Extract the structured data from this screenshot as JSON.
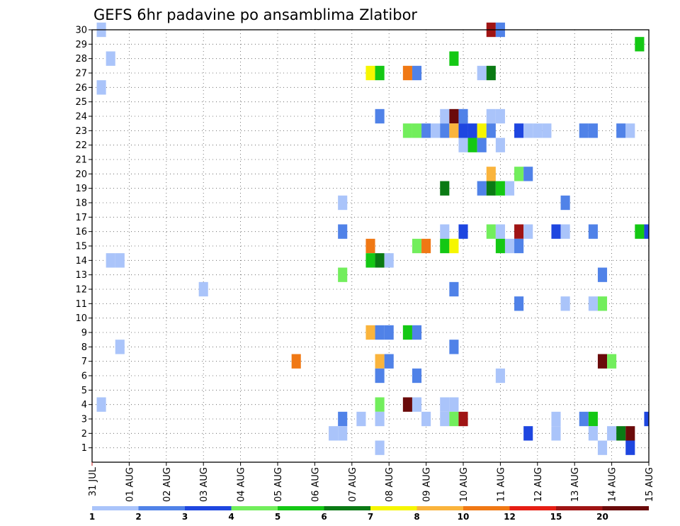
{
  "chart_data": {
    "type": "heatmap",
    "title": "GEFS 6hr padavine po ansamblima Zlatibor",
    "x_ticks": [
      "31 JUL",
      "01 AUG",
      "02 AUG",
      "03 AUG",
      "04 AUG",
      "05 AUG",
      "06 AUG",
      "07 AUG",
      "08 AUG",
      "09 AUG",
      "10 AUG",
      "11 AUG",
      "12 AUG",
      "13 AUG",
      "14 AUG",
      "15 AUG"
    ],
    "x_range": [
      "31 JUL 00Z",
      "15 AUG 00Z"
    ],
    "time_step_hours": 6,
    "y_ticks": [
      "1",
      "2",
      "3",
      "4",
      "5",
      "6",
      "7",
      "8",
      "9",
      "10",
      "11",
      "12",
      "13",
      "14",
      "15",
      "16",
      "17",
      "18",
      "19",
      "20",
      "21",
      "22",
      "23",
      "24",
      "25",
      "26",
      "27",
      "28",
      "29",
      "30"
    ],
    "y_range": [
      0,
      30
    ],
    "ylabel": "",
    "xlabel": "",
    "grid": true,
    "colorbar": {
      "labels": [
        "1",
        "2",
        "3",
        "4",
        "5",
        "6",
        "7",
        "8",
        "10",
        "12",
        "15",
        "20"
      ],
      "colors": [
        "#aac4fa",
        "#5082e8",
        "#1e46e0",
        "#72ee5c",
        "#14c814",
        "#0a7a14",
        "#f6f600",
        "#fab43c",
        "#f07814",
        "#e61e14",
        "#a01414",
        "#6a0a0a"
      ]
    },
    "cells": [
      {
        "m": 30,
        "t": "31 JUL 06Z",
        "c": "#aac4fa"
      },
      {
        "m": 30,
        "t": "10 AUG 18Z",
        "c": "#a01414"
      },
      {
        "m": 30,
        "t": "11 AUG 00Z",
        "c": "#5082e8"
      },
      {
        "m": 29,
        "t": "14 AUG 18Z",
        "c": "#14c814"
      },
      {
        "m": 28,
        "t": "31 JUL 12Z",
        "c": "#aac4fa"
      },
      {
        "m": 28,
        "t": "09 AUG 18Z",
        "c": "#14c814"
      },
      {
        "m": 27,
        "t": "07 AUG 12Z",
        "c": "#f6f600"
      },
      {
        "m": 27,
        "t": "07 AUG 18Z",
        "c": "#14c814"
      },
      {
        "m": 27,
        "t": "08 AUG 12Z",
        "c": "#f07814"
      },
      {
        "m": 27,
        "t": "08 AUG 18Z",
        "c": "#5082e8"
      },
      {
        "m": 27,
        "t": "10 AUG 12Z",
        "c": "#aac4fa"
      },
      {
        "m": 27,
        "t": "10 AUG 18Z",
        "c": "#0a7a14"
      },
      {
        "m": 26,
        "t": "31 JUL 06Z",
        "c": "#aac4fa"
      },
      {
        "m": 24,
        "t": "07 AUG 18Z",
        "c": "#5082e8"
      },
      {
        "m": 24,
        "t": "09 AUG 12Z",
        "c": "#aac4fa"
      },
      {
        "m": 24,
        "t": "09 AUG 18Z",
        "c": "#6a0a0a"
      },
      {
        "m": 24,
        "t": "10 AUG 00Z",
        "c": "#5082e8"
      },
      {
        "m": 24,
        "t": "10 AUG 18Z",
        "c": "#aac4fa"
      },
      {
        "m": 24,
        "t": "11 AUG 00Z",
        "c": "#aac4fa"
      },
      {
        "m": 23,
        "t": "08 AUG 12Z",
        "c": "#72ee5c"
      },
      {
        "m": 23,
        "t": "08 AUG 18Z",
        "c": "#72ee5c"
      },
      {
        "m": 23,
        "t": "09 AUG 00Z",
        "c": "#5082e8"
      },
      {
        "m": 23,
        "t": "09 AUG 06Z",
        "c": "#aac4fa"
      },
      {
        "m": 23,
        "t": "09 AUG 12Z",
        "c": "#5082e8"
      },
      {
        "m": 23,
        "t": "09 AUG 18Z",
        "c": "#fab43c"
      },
      {
        "m": 23,
        "t": "10 AUG 00Z",
        "c": "#1e46e0"
      },
      {
        "m": 23,
        "t": "10 AUG 06Z",
        "c": "#1e46e0"
      },
      {
        "m": 23,
        "t": "10 AUG 12Z",
        "c": "#f6f600"
      },
      {
        "m": 23,
        "t": "10 AUG 18Z",
        "c": "#5082e8"
      },
      {
        "m": 23,
        "t": "11 AUG 12Z",
        "c": "#1e46e0"
      },
      {
        "m": 23,
        "t": "11 AUG 18Z",
        "c": "#aac4fa"
      },
      {
        "m": 23,
        "t": "12 AUG 00Z",
        "c": "#aac4fa"
      },
      {
        "m": 23,
        "t": "12 AUG 06Z",
        "c": "#aac4fa"
      },
      {
        "m": 23,
        "t": "13 AUG 06Z",
        "c": "#5082e8"
      },
      {
        "m": 23,
        "t": "13 AUG 12Z",
        "c": "#5082e8"
      },
      {
        "m": 23,
        "t": "14 AUG 06Z",
        "c": "#5082e8"
      },
      {
        "m": 23,
        "t": "14 AUG 12Z",
        "c": "#aac4fa"
      },
      {
        "m": 22,
        "t": "10 AUG 00Z",
        "c": "#aac4fa"
      },
      {
        "m": 22,
        "t": "10 AUG 06Z",
        "c": "#14c814"
      },
      {
        "m": 22,
        "t": "10 AUG 12Z",
        "c": "#5082e8"
      },
      {
        "m": 22,
        "t": "11 AUG 00Z",
        "c": "#aac4fa"
      },
      {
        "m": 20,
        "t": "10 AUG 18Z",
        "c": "#fab43c"
      },
      {
        "m": 20,
        "t": "11 AUG 12Z",
        "c": "#72ee5c"
      },
      {
        "m": 20,
        "t": "11 AUG 18Z",
        "c": "#5082e8"
      },
      {
        "m": 19,
        "t": "09 AUG 12Z",
        "c": "#0a7a14"
      },
      {
        "m": 19,
        "t": "10 AUG 12Z",
        "c": "#5082e8"
      },
      {
        "m": 19,
        "t": "10 AUG 18Z",
        "c": "#0a7a14"
      },
      {
        "m": 19,
        "t": "11 AUG 00Z",
        "c": "#14c814"
      },
      {
        "m": 19,
        "t": "11 AUG 06Z",
        "c": "#aac4fa"
      },
      {
        "m": 18,
        "t": "06 AUG 18Z",
        "c": "#aac4fa"
      },
      {
        "m": 18,
        "t": "12 AUG 18Z",
        "c": "#5082e8"
      },
      {
        "m": 16,
        "t": "06 AUG 18Z",
        "c": "#5082e8"
      },
      {
        "m": 16,
        "t": "09 AUG 12Z",
        "c": "#aac4fa"
      },
      {
        "m": 16,
        "t": "10 AUG 00Z",
        "c": "#1e46e0"
      },
      {
        "m": 16,
        "t": "10 AUG 18Z",
        "c": "#72ee5c"
      },
      {
        "m": 16,
        "t": "11 AUG 00Z",
        "c": "#aac4fa"
      },
      {
        "m": 16,
        "t": "11 AUG 12Z",
        "c": "#a01414"
      },
      {
        "m": 16,
        "t": "11 AUG 18Z",
        "c": "#aac4fa"
      },
      {
        "m": 16,
        "t": "12 AUG 12Z",
        "c": "#1e46e0"
      },
      {
        "m": 16,
        "t": "12 AUG 18Z",
        "c": "#aac4fa"
      },
      {
        "m": 16,
        "t": "13 AUG 12Z",
        "c": "#5082e8"
      },
      {
        "m": 16,
        "t": "14 AUG 18Z",
        "c": "#14c814"
      },
      {
        "m": 16,
        "t": "15 AUG 00Z",
        "c": "#1e46e0"
      },
      {
        "m": 15,
        "t": "07 AUG 12Z",
        "c": "#f07814"
      },
      {
        "m": 15,
        "t": "08 AUG 18Z",
        "c": "#72ee5c"
      },
      {
        "m": 15,
        "t": "09 AUG 00Z",
        "c": "#f07814"
      },
      {
        "m": 15,
        "t": "09 AUG 12Z",
        "c": "#14c814"
      },
      {
        "m": 15,
        "t": "09 AUG 18Z",
        "c": "#f6f600"
      },
      {
        "m": 15,
        "t": "11 AUG 00Z",
        "c": "#14c814"
      },
      {
        "m": 15,
        "t": "11 AUG 06Z",
        "c": "#aac4fa"
      },
      {
        "m": 15,
        "t": "11 AUG 12Z",
        "c": "#5082e8"
      },
      {
        "m": 14,
        "t": "07 AUG 12Z",
        "c": "#14c814"
      },
      {
        "m": 14,
        "t": "07 AUG 18Z",
        "c": "#0a7a14"
      },
      {
        "m": 14,
        "t": "08 AUG 00Z",
        "c": "#aac4fa"
      },
      {
        "m": 14,
        "t": "31 JUL 12Z",
        "c": "#aac4fa"
      },
      {
        "m": 14,
        "t": "31 JUL 18Z",
        "c": "#aac4fa"
      },
      {
        "m": 13,
        "t": "06 AUG 18Z",
        "c": "#72ee5c"
      },
      {
        "m": 13,
        "t": "13 AUG 18Z",
        "c": "#5082e8"
      },
      {
        "m": 12,
        "t": "03 AUG 00Z",
        "c": "#aac4fa"
      },
      {
        "m": 12,
        "t": "09 AUG 18Z",
        "c": "#5082e8"
      },
      {
        "m": 11,
        "t": "11 AUG 12Z",
        "c": "#5082e8"
      },
      {
        "m": 11,
        "t": "12 AUG 18Z",
        "c": "#aac4fa"
      },
      {
        "m": 11,
        "t": "13 AUG 12Z",
        "c": "#aac4fa"
      },
      {
        "m": 11,
        "t": "13 AUG 18Z",
        "c": "#72ee5c"
      },
      {
        "m": 9,
        "t": "07 AUG 12Z",
        "c": "#fab43c"
      },
      {
        "m": 9,
        "t": "07 AUG 18Z",
        "c": "#5082e8"
      },
      {
        "m": 9,
        "t": "08 AUG 00Z",
        "c": "#5082e8"
      },
      {
        "m": 9,
        "t": "08 AUG 12Z",
        "c": "#14c814"
      },
      {
        "m": 9,
        "t": "08 AUG 18Z",
        "c": "#5082e8"
      },
      {
        "m": 8,
        "t": "31 JUL 18Z",
        "c": "#aac4fa"
      },
      {
        "m": 8,
        "t": "09 AUG 18Z",
        "c": "#5082e8"
      },
      {
        "m": 7,
        "t": "05 AUG 12Z",
        "c": "#f07814"
      },
      {
        "m": 7,
        "t": "07 AUG 18Z",
        "c": "#fab43c"
      },
      {
        "m": 7,
        "t": "08 AUG 00Z",
        "c": "#5082e8"
      },
      {
        "m": 7,
        "t": "13 AUG 18Z",
        "c": "#6a0a0a"
      },
      {
        "m": 7,
        "t": "14 AUG 00Z",
        "c": "#72ee5c"
      },
      {
        "m": 6,
        "t": "07 AUG 18Z",
        "c": "#5082e8"
      },
      {
        "m": 6,
        "t": "08 AUG 18Z",
        "c": "#5082e8"
      },
      {
        "m": 6,
        "t": "11 AUG 00Z",
        "c": "#aac4fa"
      },
      {
        "m": 4,
        "t": "31 JUL 06Z",
        "c": "#aac4fa"
      },
      {
        "m": 4,
        "t": "07 AUG 18Z",
        "c": "#72ee5c"
      },
      {
        "m": 4,
        "t": "08 AUG 12Z",
        "c": "#6a0a0a"
      },
      {
        "m": 4,
        "t": "08 AUG 18Z",
        "c": "#aac4fa"
      },
      {
        "m": 4,
        "t": "09 AUG 12Z",
        "c": "#aac4fa"
      },
      {
        "m": 4,
        "t": "09 AUG 18Z",
        "c": "#aac4fa"
      },
      {
        "m": 3,
        "t": "06 AUG 18Z",
        "c": "#5082e8"
      },
      {
        "m": 3,
        "t": "07 AUG 06Z",
        "c": "#aac4fa"
      },
      {
        "m": 3,
        "t": "07 AUG 18Z",
        "c": "#aac4fa"
      },
      {
        "m": 3,
        "t": "09 AUG 00Z",
        "c": "#aac4fa"
      },
      {
        "m": 3,
        "t": "09 AUG 12Z",
        "c": "#aac4fa"
      },
      {
        "m": 3,
        "t": "09 AUG 18Z",
        "c": "#72ee5c"
      },
      {
        "m": 3,
        "t": "10 AUG 00Z",
        "c": "#a01414"
      },
      {
        "m": 3,
        "t": "12 AUG 12Z",
        "c": "#aac4fa"
      },
      {
        "m": 3,
        "t": "13 AUG 06Z",
        "c": "#5082e8"
      },
      {
        "m": 3,
        "t": "13 AUG 12Z",
        "c": "#14c814"
      },
      {
        "m": 3,
        "t": "15 AUG 00Z",
        "c": "#1e46e0"
      },
      {
        "m": 2,
        "t": "06 AUG 12Z",
        "c": "#aac4fa"
      },
      {
        "m": 2,
        "t": "06 AUG 18Z",
        "c": "#aac4fa"
      },
      {
        "m": 2,
        "t": "11 AUG 18Z",
        "c": "#1e46e0"
      },
      {
        "m": 2,
        "t": "12 AUG 12Z",
        "c": "#aac4fa"
      },
      {
        "m": 2,
        "t": "13 AUG 12Z",
        "c": "#aac4fa"
      },
      {
        "m": 2,
        "t": "14 AUG 00Z",
        "c": "#aac4fa"
      },
      {
        "m": 2,
        "t": "14 AUG 06Z",
        "c": "#0a7a14"
      },
      {
        "m": 2,
        "t": "14 AUG 12Z",
        "c": "#6a0a0a"
      },
      {
        "m": 1,
        "t": "07 AUG 18Z",
        "c": "#aac4fa"
      },
      {
        "m": 1,
        "t": "13 AUG 18Z",
        "c": "#aac4fa"
      },
      {
        "m": 1,
        "t": "14 AUG 12Z",
        "c": "#1e46e0"
      }
    ]
  }
}
